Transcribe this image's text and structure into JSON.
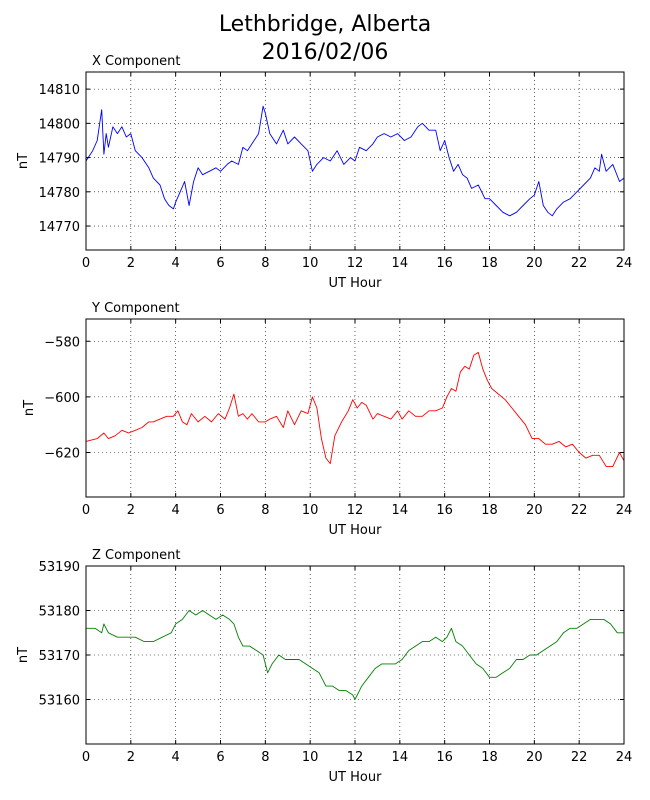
{
  "title_line1": "Lethbridge, Alberta",
  "title_line2": "2016/02/06",
  "chart_data": [
    {
      "type": "line",
      "title": "X Component",
      "xlabel": "UT Hour",
      "ylabel": "nT",
      "xlim": [
        0,
        24
      ],
      "ylim": [
        14763,
        14815
      ],
      "xticks": [
        0,
        2,
        4,
        6,
        8,
        10,
        12,
        14,
        16,
        18,
        20,
        22,
        24
      ],
      "yticks": [
        14770,
        14780,
        14790,
        14800,
        14810
      ],
      "grid": true,
      "color": "#0000ff",
      "series": [
        {
          "x": [
            0,
            0.3,
            0.5,
            0.7,
            0.8,
            0.9,
            1.0,
            1.2,
            1.4,
            1.6,
            1.8,
            2.0,
            2.2,
            2.5,
            2.8,
            3.0,
            3.3,
            3.5,
            3.7,
            3.9,
            4.0,
            4.2,
            4.4,
            4.6,
            4.8,
            5.0,
            5.2,
            5.5,
            5.8,
            6.0,
            6.3,
            6.5,
            6.8,
            7.0,
            7.2,
            7.5,
            7.7,
            7.9,
            8.0,
            8.2,
            8.5,
            8.8,
            9.0,
            9.3,
            9.6,
            9.9,
            10.1,
            10.3,
            10.6,
            10.9,
            11.2,
            11.5,
            11.8,
            12.0,
            12.2,
            12.5,
            12.8,
            13.0,
            13.3,
            13.6,
            13.9,
            14.2,
            14.5,
            14.8,
            15.0,
            15.3,
            15.6,
            15.8,
            16.0,
            16.2,
            16.4,
            16.6,
            16.8,
            17.0,
            17.2,
            17.5,
            17.8,
            18.0,
            18.3,
            18.6,
            18.9,
            19.2,
            19.5,
            19.8,
            20.0,
            20.2,
            20.4,
            20.6,
            20.8,
            21.0,
            21.3,
            21.6,
            21.9,
            22.2,
            22.5,
            22.7,
            22.9,
            23.0,
            23.2,
            23.5,
            23.8,
            24.0
          ],
          "y": [
            14789,
            14792,
            14795,
            14804,
            14791,
            14797,
            14793,
            14799,
            14797,
            14799,
            14796,
            14797,
            14792,
            14790,
            14787,
            14784,
            14782,
            14778,
            14776,
            14775,
            14777,
            14780,
            14783,
            14776,
            14783,
            14787,
            14785,
            14786,
            14787,
            14786,
            14788,
            14789,
            14788,
            14793,
            14792,
            14795,
            14797,
            14805,
            14803,
            14797,
            14794,
            14798,
            14794,
            14796,
            14794,
            14792,
            14786,
            14788,
            14790,
            14789,
            14792,
            14788,
            14790,
            14789,
            14793,
            14792,
            14794,
            14796,
            14797,
            14796,
            14797,
            14795,
            14796,
            14799,
            14800,
            14798,
            14798,
            14792,
            14795,
            14790,
            14786,
            14788,
            14785,
            14784,
            14781,
            14782,
            14778,
            14778,
            14776,
            14774,
            14773,
            14774,
            14776,
            14778,
            14779,
            14783,
            14776,
            14774,
            14773,
            14775,
            14777,
            14778,
            14780,
            14782,
            14784,
            14787,
            14786,
            14791,
            14786,
            14788,
            14783,
            14784
          ]
        }
      ]
    },
    {
      "type": "line",
      "title": "Y Component",
      "xlabel": "UT Hour",
      "ylabel": "nT",
      "xlim": [
        0,
        24
      ],
      "ylim": [
        -636,
        -572
      ],
      "xticks": [
        0,
        2,
        4,
        6,
        8,
        10,
        12,
        14,
        16,
        18,
        20,
        22,
        24
      ],
      "yticks": [
        -580,
        -600,
        -620
      ],
      "ytick_labels": [
        "−580",
        "−600",
        "−620"
      ],
      "grid": true,
      "color": "#ff0000",
      "series": [
        {
          "x": [
            0,
            0.5,
            0.8,
            1.0,
            1.3,
            1.6,
            1.9,
            2.2,
            2.5,
            2.8,
            3.0,
            3.3,
            3.6,
            3.9,
            4.1,
            4.3,
            4.5,
            4.7,
            5.0,
            5.3,
            5.6,
            5.9,
            6.2,
            6.4,
            6.6,
            6.8,
            7.0,
            7.2,
            7.4,
            7.7,
            8.0,
            8.2,
            8.5,
            8.8,
            9.0,
            9.3,
            9.6,
            9.9,
            10.1,
            10.3,
            10.5,
            10.7,
            10.9,
            11.1,
            11.4,
            11.7,
            11.9,
            12.1,
            12.3,
            12.5,
            12.8,
            13.0,
            13.3,
            13.6,
            13.9,
            14.1,
            14.4,
            14.7,
            15.0,
            15.3,
            15.6,
            15.9,
            16.1,
            16.3,
            16.5,
            16.7,
            16.9,
            17.1,
            17.3,
            17.5,
            17.7,
            17.9,
            18.1,
            18.4,
            18.7,
            19.0,
            19.3,
            19.6,
            19.9,
            20.2,
            20.5,
            20.8,
            21.1,
            21.4,
            21.7,
            22.0,
            22.3,
            22.6,
            22.9,
            23.2,
            23.5,
            23.8,
            24.0
          ],
          "y": [
            -616,
            -615,
            -613,
            -615,
            -614,
            -612,
            -613,
            -612,
            -611,
            -609,
            -609,
            -608,
            -607,
            -607,
            -605,
            -609,
            -610,
            -606,
            -609,
            -607,
            -609,
            -606,
            -608,
            -604,
            -599,
            -607,
            -606,
            -608,
            -606,
            -609,
            -609,
            -608,
            -607,
            -611,
            -605,
            -610,
            -605,
            -606,
            -600,
            -604,
            -615,
            -622,
            -624,
            -614,
            -609,
            -605,
            -601,
            -604,
            -602,
            -603,
            -608,
            -606,
            -607,
            -608,
            -605,
            -608,
            -605,
            -607,
            -607,
            -605,
            -605,
            -604,
            -600,
            -597,
            -598,
            -591,
            -589,
            -590,
            -585,
            -584,
            -590,
            -594,
            -597,
            -599,
            -601,
            -604,
            -607,
            -610,
            -615,
            -615,
            -617,
            -617,
            -616,
            -618,
            -617,
            -620,
            -622,
            -621,
            -621,
            -625,
            -625,
            -620,
            -623
          ]
        }
      ]
    },
    {
      "type": "line",
      "title": "Z Component",
      "xlabel": "UT Hour",
      "ylabel": "nT",
      "xlim": [
        0,
        24
      ],
      "ylim": [
        53150,
        53190
      ],
      "xticks": [
        0,
        2,
        4,
        6,
        8,
        10,
        12,
        14,
        16,
        18,
        20,
        22,
        24
      ],
      "yticks": [
        53160,
        53170,
        53180,
        53190
      ],
      "grid": true,
      "color": "#008000",
      "series": [
        {
          "x": [
            0,
            0.4,
            0.7,
            0.8,
            1.0,
            1.4,
            1.8,
            2.2,
            2.6,
            3.0,
            3.4,
            3.8,
            4.0,
            4.3,
            4.6,
            4.9,
            5.2,
            5.5,
            5.8,
            6.1,
            6.4,
            6.6,
            6.8,
            7.0,
            7.3,
            7.6,
            7.9,
            8.1,
            8.3,
            8.6,
            8.9,
            9.2,
            9.5,
            9.8,
            10.1,
            10.4,
            10.7,
            11.0,
            11.3,
            11.6,
            11.9,
            12.0,
            12.3,
            12.6,
            12.9,
            13.2,
            13.5,
            13.8,
            14.1,
            14.4,
            14.7,
            15.0,
            15.3,
            15.6,
            15.9,
            16.1,
            16.3,
            16.5,
            16.8,
            17.1,
            17.4,
            17.7,
            18.0,
            18.3,
            18.6,
            18.9,
            19.2,
            19.5,
            19.8,
            20.1,
            20.4,
            20.7,
            21.0,
            21.3,
            21.6,
            21.9,
            22.2,
            22.5,
            22.8,
            23.1,
            23.4,
            23.7,
            24.0
          ],
          "y": [
            53176,
            53176,
            53175,
            53177,
            53175,
            53174,
            53174,
            53174,
            53173,
            53173,
            53174,
            53175,
            53177,
            53178,
            53180,
            53179,
            53180,
            53179,
            53178,
            53179,
            53178,
            53177,
            53174,
            53172,
            53172,
            53171,
            53170,
            53166,
            53168,
            53170,
            53169,
            53169,
            53169,
            53168,
            53167,
            53166,
            53163,
            53163,
            53162,
            53162,
            53161,
            53160,
            53163,
            53165,
            53167,
            53168,
            53168,
            53168,
            53169,
            53171,
            53172,
            53173,
            53173,
            53174,
            53173,
            53174,
            53176,
            53173,
            53172,
            53170,
            53168,
            53167,
            53165,
            53165,
            53166,
            53167,
            53169,
            53169,
            53170,
            53170,
            53171,
            53172,
            53173,
            53175,
            53176,
            53176,
            53177,
            53178,
            53178,
            53178,
            53177,
            53175,
            53175
          ]
        }
      ]
    }
  ]
}
